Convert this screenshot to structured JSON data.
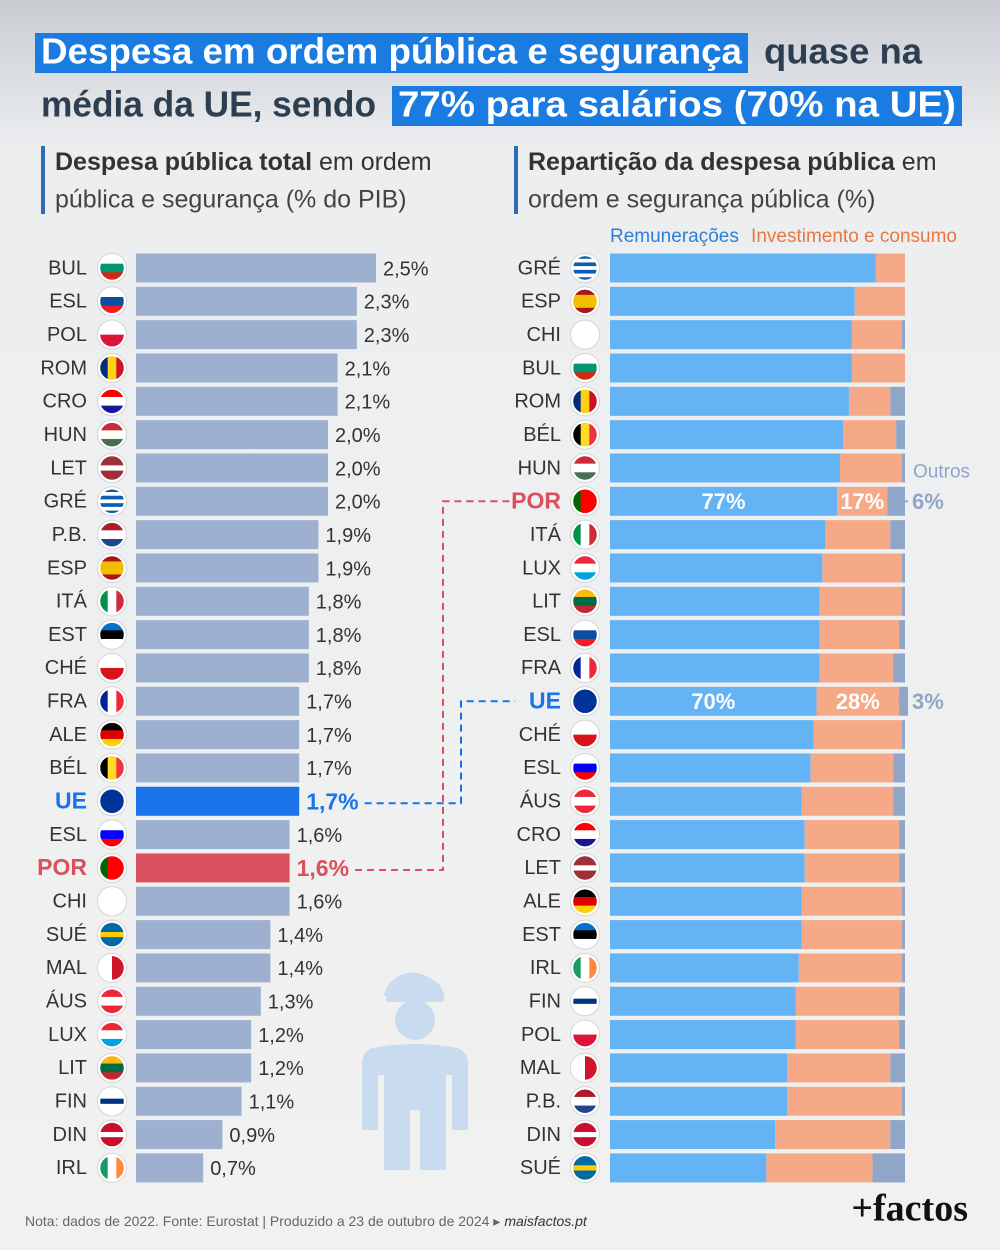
{
  "header": {
    "title_parts": [
      "Despesa em ordem pública e segurança",
      "quase na",
      "média da UE, sendo",
      "77% para salários (70% na UE)"
    ]
  },
  "chart_data": [
    {
      "type": "hbar",
      "title_parts": [
        "Despesa pública total",
        "em ordem",
        "pública e segurança (% do PIB)"
      ],
      "categories": [
        "BUL",
        "ESL",
        "POL",
        "ROM",
        "CRO",
        "HUN",
        "LET",
        "GRÉ",
        "P.B.",
        "ESP",
        "ITÁ",
        "EST",
        "CHÉ",
        "FRA",
        "ALE",
        "BÉL",
        "UE",
        "ESL",
        "POR",
        "CHI",
        "SUÉ",
        "MAL",
        "ÁUS",
        "LUX",
        "LIT",
        "FIN",
        "DIN",
        "IRL"
      ],
      "values": [
        2.5,
        2.3,
        2.3,
        2.1,
        2.1,
        2.0,
        2.0,
        2.0,
        1.9,
        1.9,
        1.8,
        1.8,
        1.8,
        1.7,
        1.7,
        1.7,
        1.7,
        1.6,
        1.6,
        1.6,
        1.4,
        1.4,
        1.3,
        1.2,
        1.2,
        1.1,
        0.9,
        0.7
      ],
      "value_labels": [
        "2,5%",
        "2,3%",
        "2,3%",
        "2,1%",
        "2,1%",
        "2,0%",
        "2,0%",
        "2,0%",
        "1,9%",
        "1,9%",
        "1,8%",
        "1,8%",
        "1,8%",
        "1,7%",
        "1,7%",
        "1,7%",
        "1,7%",
        "1,6%",
        "1,6%",
        "1,6%",
        "1,4%",
        "1,4%",
        "1,3%",
        "1,2%",
        "1,2%",
        "1,1%",
        "0,9%",
        "0,7%"
      ],
      "color": "#9eb0d0",
      "colors": [
        "#9eb0d0",
        "#9eb0d0",
        "#9eb0d0",
        "#9eb0d0",
        "#9eb0d0",
        "#9eb0d0",
        "#9eb0d0",
        "#9eb0d0",
        "#9eb0d0",
        "#9eb0d0",
        "#9eb0d0",
        "#9eb0d0",
        "#9eb0d0",
        "#9eb0d0",
        "#9eb0d0",
        "#9eb0d0",
        "#1a73e8",
        "#9eb0d0",
        "#d9505f",
        "#9eb0d0",
        "#9eb0d0",
        "#9eb0d0",
        "#9eb0d0",
        "#9eb0d0",
        "#9eb0d0",
        "#9eb0d0",
        "#9eb0d0",
        "#9eb0d0"
      ]
    },
    {
      "type": "stacked_hbar",
      "title_parts": [
        "Repartição da despesa pública",
        "em",
        "ordem e segurança pública (%)"
      ],
      "categories": [
        "GRÉ",
        "ESP",
        "CHI",
        "BUL",
        "ROM",
        "BÉL",
        "HUN",
        "POR",
        "ITÁ",
        "LUX",
        "LIT",
        "ESL",
        "FRA",
        "UE",
        "CHÉ",
        "ESL",
        "ÁUS",
        "CRO",
        "LET",
        "ALE",
        "EST",
        "IRL",
        "FIN",
        "POL",
        "MAL",
        "P.B.",
        "DIN",
        "SUÉ"
      ],
      "category_colors": [
        "#333333",
        "#333333",
        "#333333",
        "#333333",
        "#333333",
        "#333333",
        "#333333",
        "#d9505f",
        "#333333",
        "#333333",
        "#333333",
        "#333333",
        "#333333",
        "#1a73e8",
        "#333333",
        "#333333",
        "#333333",
        "#333333",
        "#333333",
        "#333333",
        "#333333",
        "#333333",
        "#333333",
        "#333333",
        "#333333",
        "#333333",
        "#333333",
        "#333333"
      ],
      "series": [
        {
          "name": "Remunerações",
          "color": "#63b3f5",
          "values": [
            90,
            83,
            82,
            82,
            81,
            79,
            78,
            77,
            73,
            72,
            71,
            71,
            71,
            70,
            69,
            68,
            65,
            66,
            66,
            65,
            65,
            64,
            63,
            63,
            60,
            60,
            56,
            53
          ],
          "value_labels": [
            null,
            null,
            null,
            null,
            null,
            null,
            null,
            "77%",
            null,
            null,
            null,
            null,
            null,
            "70%",
            null,
            null,
            null,
            null,
            null,
            null,
            null,
            null,
            null,
            null,
            null,
            null,
            null,
            null
          ]
        },
        {
          "name": "Investimento e consumo",
          "color": "#f5a987",
          "values": [
            10,
            17,
            17,
            18,
            14,
            18,
            21,
            17,
            22,
            27,
            28,
            27,
            25,
            28,
            30,
            28,
            31,
            32,
            32,
            34,
            34,
            35,
            35,
            35,
            35,
            39,
            39,
            36
          ],
          "value_labels": [
            null,
            null,
            null,
            null,
            null,
            null,
            null,
            "17%",
            null,
            null,
            null,
            null,
            null,
            "28%",
            null,
            null,
            null,
            null,
            null,
            null,
            null,
            null,
            null,
            null,
            null,
            null,
            null,
            null
          ]
        },
        {
          "name": "Outros",
          "color": "#8fa6c8",
          "values": [
            0,
            0,
            1,
            0,
            5,
            3,
            1,
            6,
            5,
            1,
            1,
            2,
            4,
            3,
            1,
            4,
            4,
            2,
            2,
            1,
            1,
            1,
            2,
            2,
            5,
            1,
            5,
            11
          ],
          "value_labels": [
            null,
            null,
            null,
            null,
            null,
            null,
            null,
            "6%",
            null,
            null,
            null,
            null,
            null,
            "3%",
            null,
            null,
            null,
            null,
            null,
            null,
            null,
            null,
            null,
            null,
            null,
            null,
            null,
            null
          ]
        }
      ]
    }
  ],
  "footer": {
    "note": "Nota: dados de 2022. Fonte: Eurostat | Produzido a 23 de outubro de 2024 ▸",
    "site": "maisfactos.pt",
    "logo": "+factos"
  }
}
